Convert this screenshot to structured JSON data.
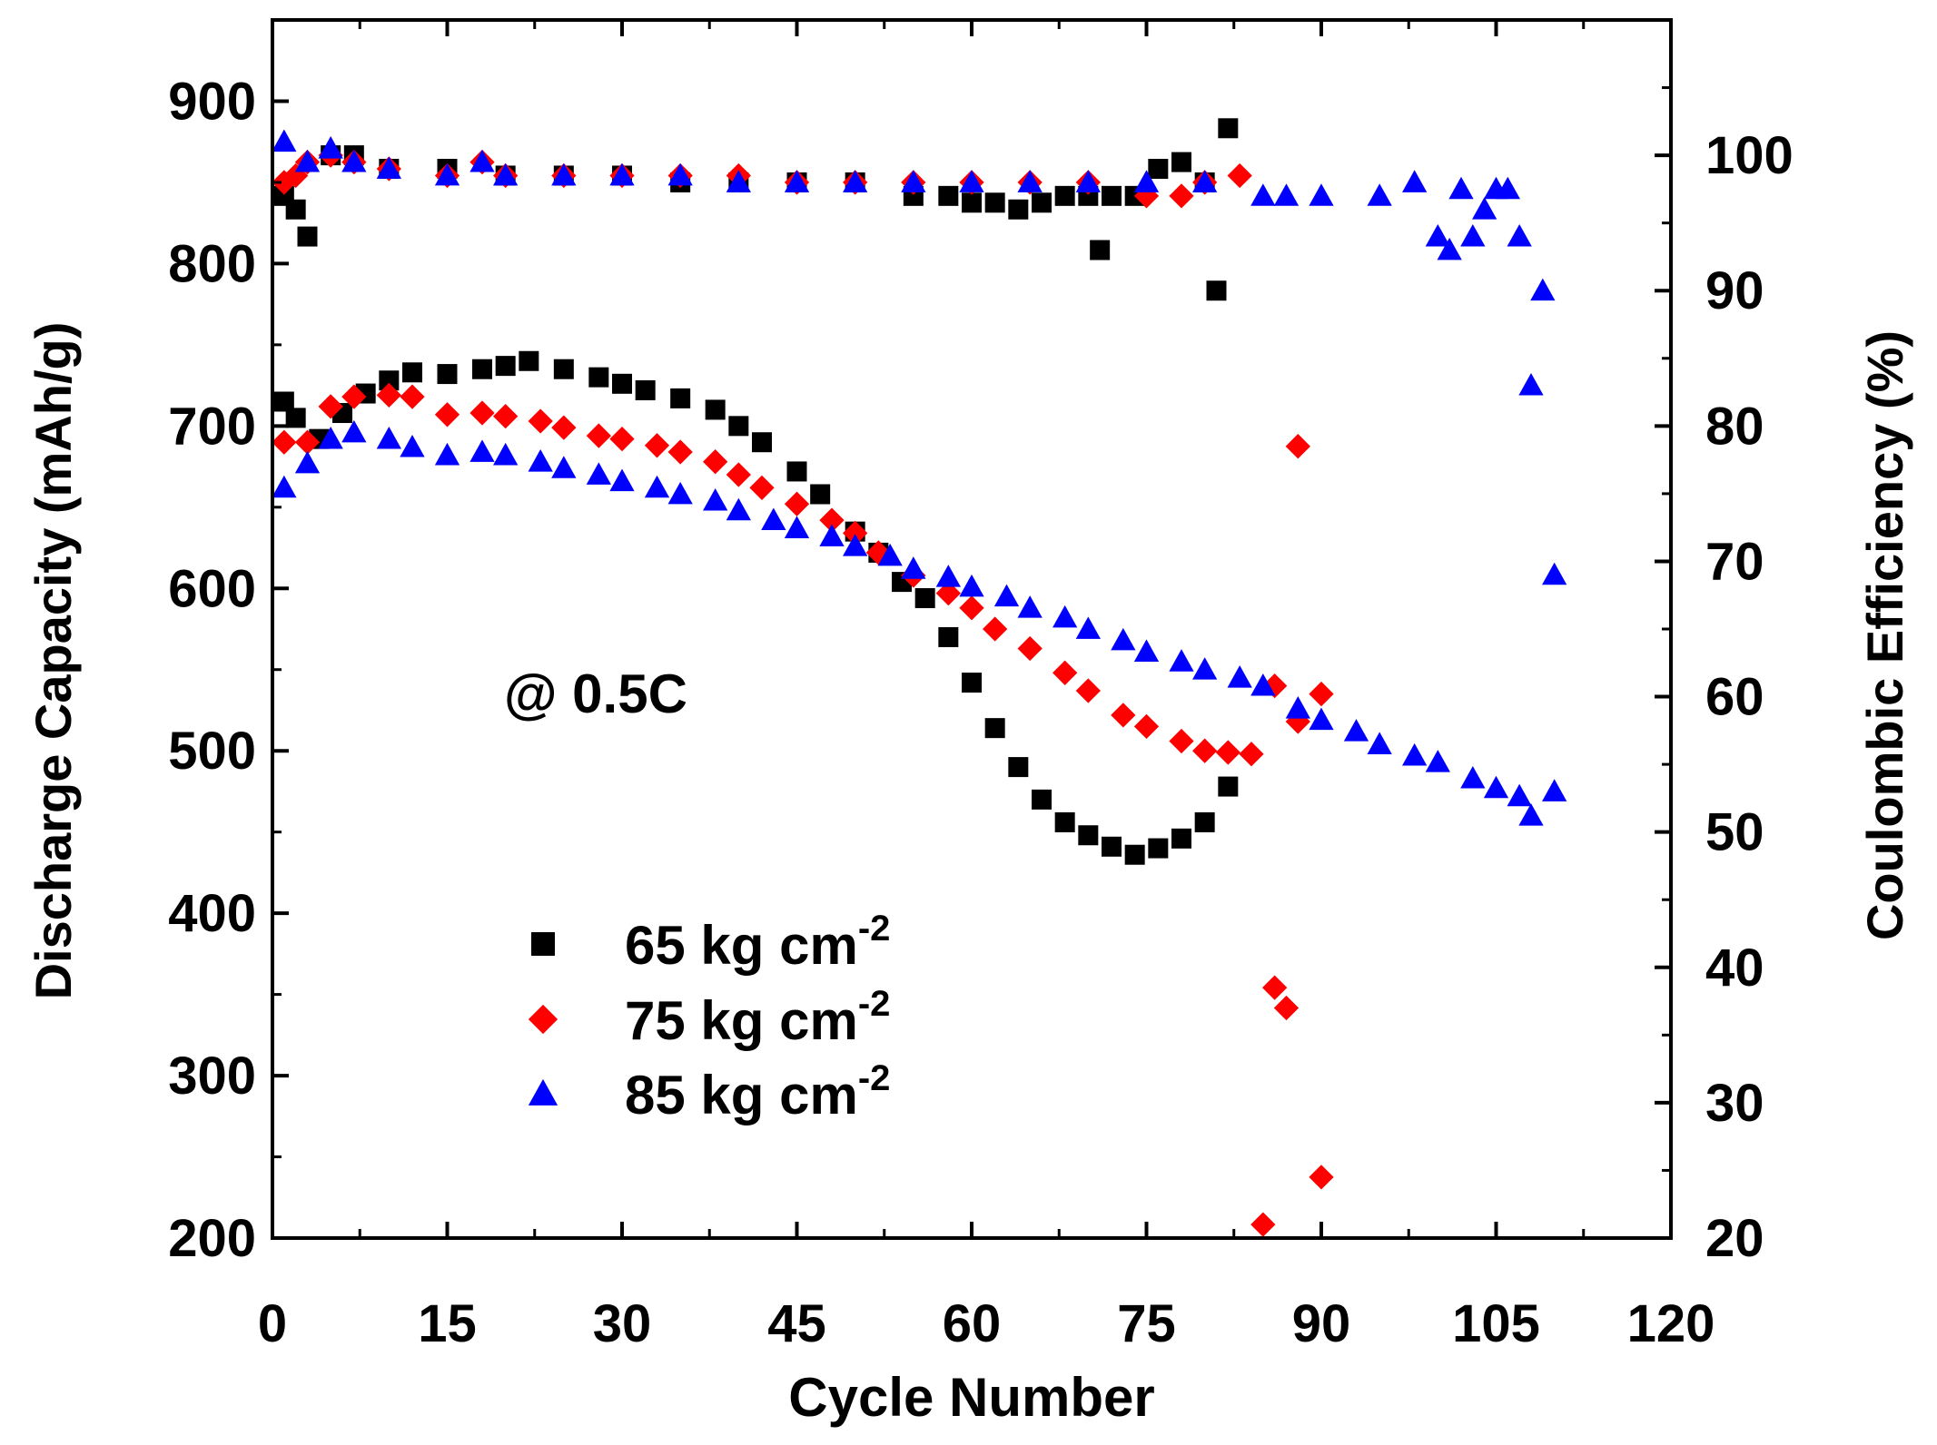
{
  "chart_data": {
    "type": "scatter",
    "title": "",
    "annotation": "@ 0.5C",
    "xlabel": "Cycle Number",
    "ylabel_left": "Discharge Capacity (mAh/g)",
    "ylabel_right": "Coulombic Efficiency (%)",
    "xlim": [
      0,
      120
    ],
    "ylim_left": [
      200,
      950
    ],
    "ylim_right": [
      20,
      110
    ],
    "x_ticks": [
      0,
      15,
      30,
      45,
      60,
      75,
      90,
      105,
      120
    ],
    "y_left_ticks": [
      200,
      300,
      400,
      500,
      600,
      700,
      800,
      900
    ],
    "y_right_ticks": [
      20,
      30,
      40,
      50,
      60,
      70,
      80,
      90,
      100
    ],
    "grid": false,
    "legend_position": "bottom-left",
    "legend": [
      {
        "name": "65 kg cm",
        "sup": "-2",
        "color": "#000000",
        "marker": "square"
      },
      {
        "name": "75 kg cm",
        "sup": "-2",
        "color": "#ff0000",
        "marker": "diamond"
      },
      {
        "name": "85 kg cm",
        "sup": "-2",
        "color": "#0000ff",
        "marker": "triangle"
      }
    ],
    "series": [
      {
        "name": "65 kg cm-2",
        "kind": "capacity",
        "axis": "left",
        "color": "#000000",
        "marker": "square",
        "x": [
          1,
          2,
          4,
          6,
          8,
          10,
          12,
          15,
          18,
          20,
          22,
          25,
          28,
          30,
          32,
          35,
          38,
          40,
          42,
          45,
          47,
          50,
          52,
          54,
          56,
          58,
          60,
          62,
          64,
          66,
          68,
          70,
          72,
          74,
          76,
          78,
          80,
          82
        ],
        "y": [
          715,
          705,
          692,
          708,
          720,
          728,
          733,
          732,
          735,
          737,
          740,
          735,
          730,
          726,
          722,
          717,
          710,
          700,
          690,
          672,
          658,
          635,
          622,
          604,
          594,
          570,
          542,
          514,
          490,
          470,
          456,
          448,
          441,
          436,
          440,
          446,
          456,
          478
        ]
      },
      {
        "name": "75 kg cm-2",
        "kind": "capacity",
        "axis": "left",
        "color": "#ff0000",
        "marker": "diamond",
        "x": [
          1,
          3,
          5,
          7,
          10,
          12,
          15,
          18,
          20,
          23,
          25,
          28,
          30,
          33,
          35,
          38,
          40,
          42,
          45,
          48,
          50,
          52,
          55,
          58,
          60,
          62,
          65,
          68,
          70,
          73,
          75,
          78,
          80,
          82,
          84,
          86,
          88,
          90
        ],
        "y": [
          690,
          690,
          712,
          718,
          719,
          718,
          707,
          708,
          706,
          703,
          699,
          694,
          692,
          688,
          684,
          678,
          670,
          662,
          652,
          642,
          634,
          622,
          608,
          597,
          588,
          575,
          563,
          548,
          537,
          522,
          515,
          506,
          500,
          499,
          498,
          540,
          518,
          535
        ]
      },
      {
        "name": "85 kg cm-2",
        "kind": "capacity",
        "axis": "left",
        "color": "#0000ff",
        "marker": "triangle",
        "x": [
          1,
          3,
          5,
          7,
          10,
          12,
          15,
          18,
          20,
          23,
          25,
          28,
          30,
          33,
          35,
          38,
          40,
          43,
          45,
          48,
          50,
          53,
          55,
          58,
          60,
          63,
          65,
          68,
          70,
          73,
          75,
          78,
          80,
          83,
          85,
          88,
          90,
          93,
          95,
          98,
          100,
          103,
          105,
          107,
          108,
          110
        ],
        "y": [
          662,
          677,
          692,
          696,
          692,
          687,
          682,
          684,
          682,
          678,
          674,
          670,
          666,
          662,
          658,
          654,
          648,
          642,
          637,
          632,
          626,
          620,
          612,
          607,
          601,
          595,
          588,
          582,
          575,
          568,
          561,
          555,
          550,
          545,
          540,
          526,
          519,
          512,
          504,
          497,
          493,
          483,
          477,
          472,
          460,
          475
        ]
      },
      {
        "name": "65 kg cm-2",
        "kind": "efficiency",
        "axis": "right",
        "color": "#000000",
        "marker": "square",
        "x": [
          1,
          2,
          3,
          5,
          7,
          10,
          15,
          20,
          25,
          30,
          35,
          40,
          45,
          50,
          55,
          58,
          60,
          62,
          64,
          66,
          68,
          70,
          71,
          72,
          74,
          76,
          78,
          80,
          81,
          82
        ],
        "y": [
          97,
          96,
          94,
          100,
          100,
          99,
          99,
          98.5,
          98.5,
          98.5,
          98,
          98,
          98,
          98,
          97,
          97,
          96.5,
          96.5,
          96,
          96.5,
          97,
          97,
          93,
          97,
          97,
          99,
          99.5,
          98,
          90,
          102
        ]
      },
      {
        "name": "75 kg cm-2",
        "kind": "efficiency",
        "axis": "right",
        "color": "#ff0000",
        "marker": "diamond",
        "x": [
          1,
          2,
          3,
          5,
          7,
          10,
          15,
          18,
          20,
          25,
          30,
          35,
          40,
          45,
          50,
          55,
          60,
          65,
          70,
          75,
          78,
          80,
          83,
          85,
          86,
          87,
          88,
          90
        ],
        "y": [
          98,
          98.5,
          99.5,
          100,
          99.5,
          99,
          98.5,
          99.5,
          98.5,
          98.5,
          98.5,
          98.5,
          98.5,
          98,
          98,
          98,
          98,
          98,
          98,
          97,
          97,
          98,
          98.5,
          21,
          38.5,
          37,
          78.5,
          24.5
        ]
      },
      {
        "name": "85 kg cm-2",
        "kind": "efficiency",
        "axis": "right",
        "color": "#0000ff",
        "marker": "triangle",
        "x": [
          1,
          3,
          5,
          7,
          10,
          15,
          18,
          20,
          25,
          30,
          35,
          40,
          45,
          50,
          55,
          60,
          65,
          70,
          75,
          80,
          85,
          87,
          90,
          95,
          98,
          100,
          101,
          102,
          103,
          104,
          105,
          106,
          107,
          108,
          109,
          110
        ],
        "y": [
          101,
          99.5,
          100.5,
          99.5,
          99,
          98.5,
          99.5,
          98.5,
          98.5,
          98.5,
          98.5,
          98,
          98,
          98,
          98,
          98,
          98,
          98,
          98,
          98,
          97,
          97,
          97,
          97,
          98,
          94,
          93,
          97.5,
          94,
          96,
          97.5,
          97.5,
          94,
          83,
          90,
          69
        ]
      }
    ]
  }
}
